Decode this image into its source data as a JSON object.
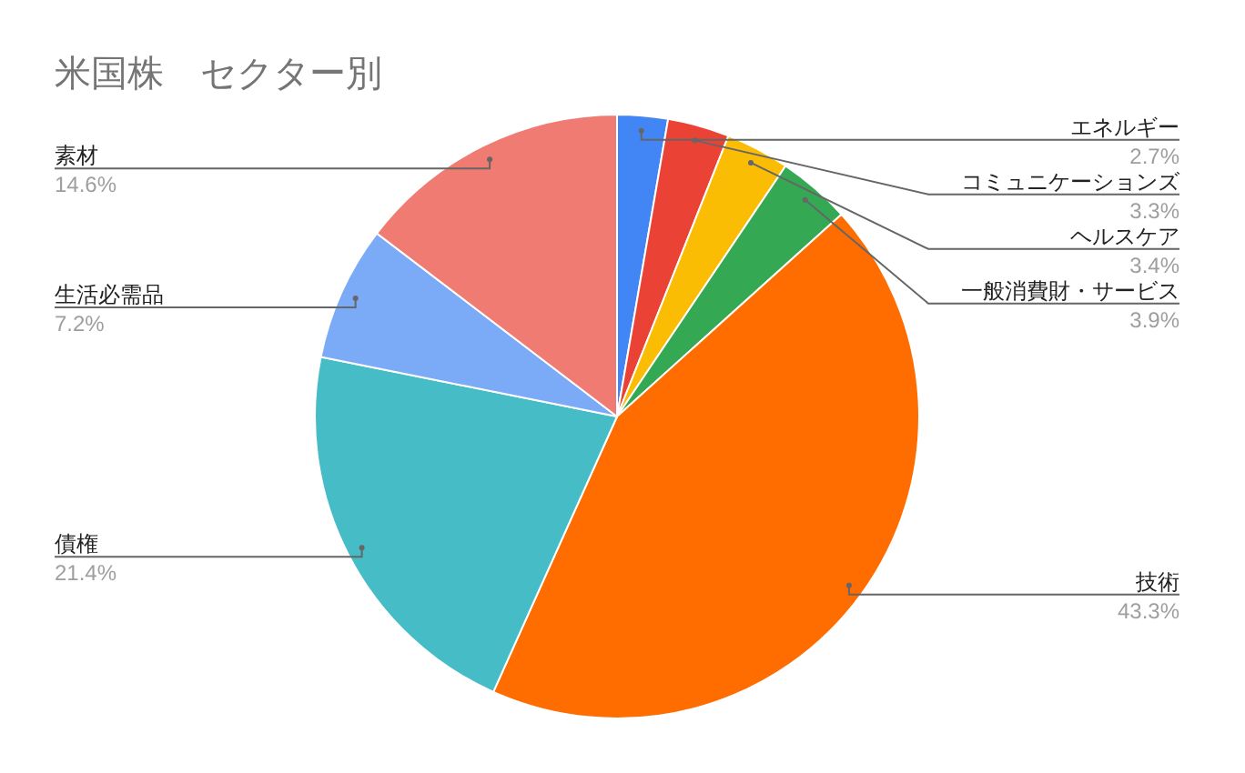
{
  "chart_data": {
    "type": "pie",
    "title": "米国株　セクター別",
    "categories": [
      "エネルギー",
      "コミュニケーションズ",
      "ヘルスケア",
      "一般消費財・サービス",
      "技術",
      "債権",
      "生活必需品",
      "素材"
    ],
    "values": [
      2.7,
      3.3,
      3.4,
      3.9,
      43.3,
      21.4,
      7.2,
      14.6
    ],
    "value_labels": [
      "2.7%",
      "3.3%",
      "3.4%",
      "3.9%",
      "43.3%",
      "21.4%",
      "7.2%",
      "14.6%"
    ],
    "colors": [
      "#4285f4",
      "#ea4335",
      "#fbbc04",
      "#34a853",
      "#ff6d01",
      "#46bdc6",
      "#7baaf7",
      "#f07b72"
    ]
  }
}
